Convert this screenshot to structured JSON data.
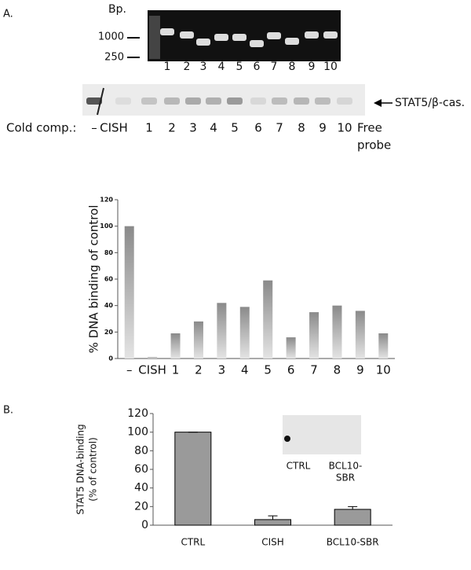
{
  "panels": {
    "a": "A.",
    "b": "B."
  },
  "gel_top": {
    "unit": "Bp.",
    "markers": [
      "1000",
      "250"
    ],
    "lanes": [
      "1",
      "2",
      "3",
      "4",
      "5",
      "6",
      "7",
      "8",
      "9",
      "10"
    ]
  },
  "gel_emsa": {
    "band_label": "STAT5/β-cas.",
    "row_label": "Cold comp.:",
    "lanes": [
      "–",
      "CISH",
      "1",
      "2",
      "3",
      "4",
      "5",
      "6",
      "7",
      "8",
      "9",
      "10"
    ],
    "free_probe": [
      "Free",
      "probe"
    ]
  },
  "chart_data": [
    {
      "type": "bar",
      "ylabel": "% DNA binding of control",
      "categories": [
        "–",
        "CISH",
        "1",
        "2",
        "3",
        "4",
        "5",
        "6",
        "7",
        "8",
        "9",
        "10"
      ],
      "values": [
        100,
        1,
        19,
        28,
        42,
        39,
        59,
        16,
        35,
        40,
        36,
        19
      ],
      "color": "#8a8a8a",
      "ylim": [
        0,
        120
      ],
      "yticks": [
        0,
        20,
        40,
        60,
        80,
        100,
        120
      ]
    },
    {
      "type": "bar",
      "ylabel": [
        "STAT5 DNA-binding",
        "(% of control)"
      ],
      "categories": [
        "CTRL",
        "CISH",
        "BCL10-SBR"
      ],
      "values": [
        100,
        6,
        17
      ],
      "errors": [
        0,
        4,
        3
      ],
      "color": "#9a9a9a",
      "ylim": [
        0,
        120
      ],
      "yticks": [
        0,
        20,
        40,
        60,
        80,
        100,
        120
      ],
      "inset_labels": [
        "CTRL",
        "BCL10-",
        "SBR"
      ]
    }
  ]
}
